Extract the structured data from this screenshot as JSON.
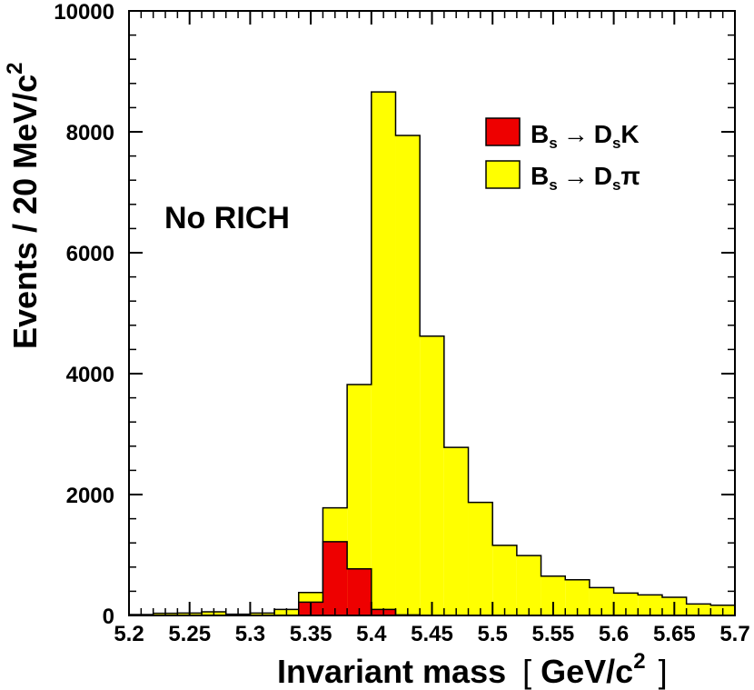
{
  "chart_data": {
    "type": "bar",
    "xlabel": "Invariant mass",
    "xlabel_unit_open": "[",
    "xlabel_unit": "GeV/c",
    "xlabel_unit_sup": "2",
    "xlabel_unit_close": "]",
    "ylabel": "Events  /  20 MeV/c",
    "ylabel_sup": "2",
    "xlim": [
      5.2,
      5.7
    ],
    "ylim": [
      0,
      10000
    ],
    "x_ticks": [
      "5.2",
      "5.25",
      "5.3",
      "5.35",
      "5.4",
      "5.45",
      "5.5",
      "5.55",
      "5.6",
      "5.65",
      "5.7"
    ],
    "y_ticks": [
      "0",
      "2000",
      "4000",
      "6000",
      "8000",
      "10000"
    ],
    "annotation": "No RICH",
    "legend_position": "top-right",
    "grid": false,
    "bin_edges": [
      5.2,
      5.22,
      5.24,
      5.26,
      5.28,
      5.3,
      5.32,
      5.34,
      5.36,
      5.38,
      5.4,
      5.42,
      5.44,
      5.46,
      5.48,
      5.5,
      5.52,
      5.54,
      5.56,
      5.58,
      5.6,
      5.62,
      5.64,
      5.66,
      5.68,
      5.7
    ],
    "series": [
      {
        "name": "Bs → Ds π",
        "legend_main": "B",
        "legend_sub1": "s",
        "legend_arrow": "→",
        "legend_main2": "D",
        "legend_sub2": "s",
        "legend_tail": "π",
        "color": "#ffff00",
        "values": [
          15,
          35,
          40,
          60,
          20,
          40,
          100,
          380,
          1780,
          3820,
          8660,
          7940,
          4620,
          2780,
          1870,
          1160,
          990,
          650,
          590,
          460,
          370,
          340,
          300,
          190,
          170
        ]
      },
      {
        "name": "Bs → Ds K",
        "legend_main": "B",
        "legend_sub1": "s",
        "legend_arrow": "→",
        "legend_main2": "D",
        "legend_sub2": "s",
        "legend_tail": "K",
        "color": "#ee0000",
        "values": [
          0,
          0,
          0,
          0,
          0,
          0,
          0,
          220,
          1220,
          770,
          100,
          10,
          0,
          0,
          0,
          0,
          0,
          0,
          0,
          0,
          0,
          0,
          0,
          0,
          0
        ]
      }
    ]
  }
}
